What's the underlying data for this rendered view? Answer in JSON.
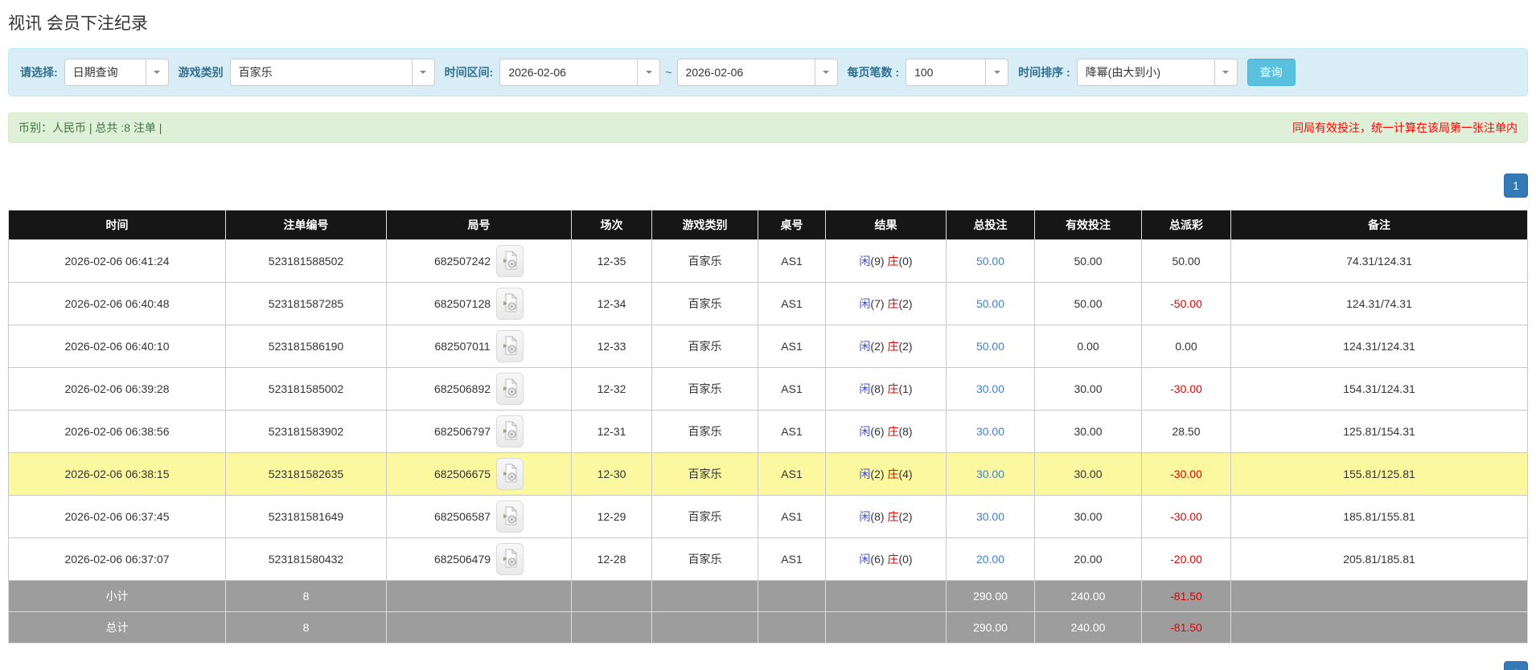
{
  "page": {
    "title": "视讯 会员下注纪录"
  },
  "filters": {
    "select_label": "请选择:",
    "select_value": "日期查询",
    "game_type_label": "游戏类别",
    "game_type_value": "百家乐",
    "date_range_label": "时间区间:",
    "date_from": "2026-02-06",
    "date_separator": "~",
    "date_to": "2026-02-06",
    "page_size_label": "每页笔数 :",
    "page_size_value": "100",
    "sort_label": "时间排序 :",
    "sort_value": "降幂(由大到小)",
    "search_button": "查询"
  },
  "summary": {
    "left_text": "币别：人民币 | 总共 :8 注单 |",
    "right_text": "同局有效投注，统一计算在该局第一张注单内"
  },
  "pagination": {
    "page": "1"
  },
  "icons": {
    "round_video": "video-icon",
    "dropdown": "chevron-down-icon"
  },
  "colors": {
    "filter_bg": "#d9edf7",
    "filter_label": "#31708f",
    "summary_bg": "#dff0d8",
    "summary_text": "#3c763d",
    "notice_red": "#ff0000",
    "header_bg": "#161616",
    "highlight_row": "#fbf8a0",
    "subtotal_bg": "#9d9d9d",
    "link_blue": "#3d7fd9",
    "player_blue": "#3f51d1",
    "banker_red": "#e60000",
    "search_button_blue": "#5bc0de",
    "pager_blue": "#337ab7"
  },
  "table": {
    "headers": [
      "时间",
      "注单编号",
      "局号",
      "场次",
      "游戏类别",
      "桌号",
      "结果",
      "总投注",
      "有效投注",
      "总派彩",
      "备注"
    ],
    "rows": [
      {
        "time": "2026-02-06 06:41:24",
        "bet_id": "523181588502",
        "round_id": "682507242",
        "session": "12-35",
        "game": "百家乐",
        "table_no": "AS1",
        "result_player": "闲",
        "result_player_n": "(9)",
        "result_banker": "庄",
        "result_banker_n": "(0)",
        "total_bet": "50.00",
        "valid_bet": "50.00",
        "payout": "50.00",
        "remark": "74.31/124.31",
        "highlighted": false
      },
      {
        "time": "2026-02-06 06:40:48",
        "bet_id": "523181587285",
        "round_id": "682507128",
        "session": "12-34",
        "game": "百家乐",
        "table_no": "AS1",
        "result_player": "闲",
        "result_player_n": "(7)",
        "result_banker": "庄",
        "result_banker_n": "(2)",
        "total_bet": "50.00",
        "valid_bet": "50.00",
        "payout": "-50.00",
        "remark": "124.31/74.31",
        "highlighted": false
      },
      {
        "time": "2026-02-06 06:40:10",
        "bet_id": "523181586190",
        "round_id": "682507011",
        "session": "12-33",
        "game": "百家乐",
        "table_no": "AS1",
        "result_player": "闲",
        "result_player_n": "(2)",
        "result_banker": "庄",
        "result_banker_n": "(2)",
        "total_bet": "50.00",
        "valid_bet": "0.00",
        "payout": "0.00",
        "remark": "124.31/124.31",
        "highlighted": false
      },
      {
        "time": "2026-02-06 06:39:28",
        "bet_id": "523181585002",
        "round_id": "682506892",
        "session": "12-32",
        "game": "百家乐",
        "table_no": "AS1",
        "result_player": "闲",
        "result_player_n": "(8)",
        "result_banker": "庄",
        "result_banker_n": "(1)",
        "total_bet": "30.00",
        "valid_bet": "30.00",
        "payout": "-30.00",
        "remark": "154.31/124.31",
        "highlighted": false
      },
      {
        "time": "2026-02-06 06:38:56",
        "bet_id": "523181583902",
        "round_id": "682506797",
        "session": "12-31",
        "game": "百家乐",
        "table_no": "AS1",
        "result_player": "闲",
        "result_player_n": "(6)",
        "result_banker": "庄",
        "result_banker_n": "(8)",
        "total_bet": "30.00",
        "valid_bet": "30.00",
        "payout": "28.50",
        "remark": "125.81/154.31",
        "highlighted": false
      },
      {
        "time": "2026-02-06 06:38:15",
        "bet_id": "523181582635",
        "round_id": "682506675",
        "session": "12-30",
        "game": "百家乐",
        "table_no": "AS1",
        "result_player": "闲",
        "result_player_n": "(2)",
        "result_banker": "庄",
        "result_banker_n": "(4)",
        "total_bet": "30.00",
        "valid_bet": "30.00",
        "payout": "-30.00",
        "remark": "155.81/125.81",
        "highlighted": true
      },
      {
        "time": "2026-02-06 06:37:45",
        "bet_id": "523181581649",
        "round_id": "682506587",
        "session": "12-29",
        "game": "百家乐",
        "table_no": "AS1",
        "result_player": "闲",
        "result_player_n": "(8)",
        "result_banker": "庄",
        "result_banker_n": "(2)",
        "total_bet": "30.00",
        "valid_bet": "30.00",
        "payout": "-30.00",
        "remark": "185.81/155.81",
        "highlighted": false
      },
      {
        "time": "2026-02-06 06:37:07",
        "bet_id": "523181580432",
        "round_id": "682506479",
        "session": "12-28",
        "game": "百家乐",
        "table_no": "AS1",
        "result_player": "闲",
        "result_player_n": "(6)",
        "result_banker": "庄",
        "result_banker_n": "(0)",
        "total_bet": "20.00",
        "valid_bet": "20.00",
        "payout": "-20.00",
        "remark": "205.81/185.81",
        "highlighted": false
      }
    ],
    "subtotal": {
      "label": "小计",
      "count": "8",
      "total_bet": "290.00",
      "valid_bet": "240.00",
      "payout": "-81.50"
    },
    "total": {
      "label": "总计",
      "count": "8",
      "total_bet": "290.00",
      "valid_bet": "240.00",
      "payout": "-81.50"
    }
  }
}
